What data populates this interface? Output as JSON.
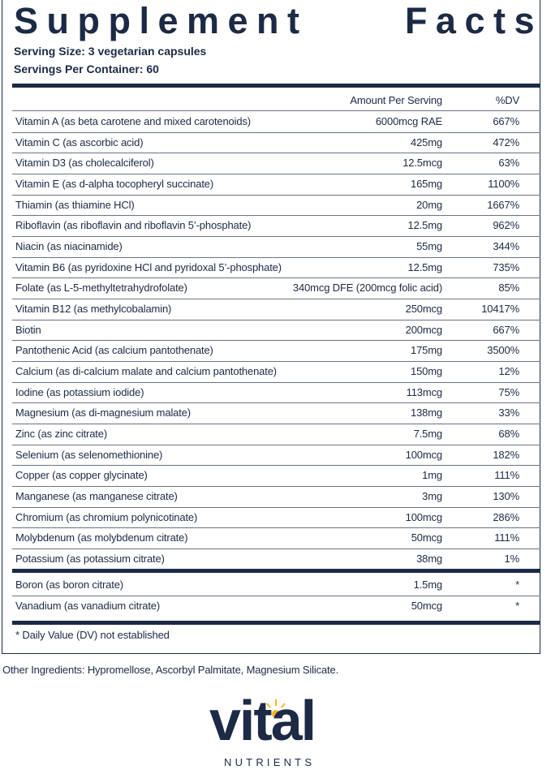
{
  "header": {
    "title": "Supplement Facts",
    "serving_size": "Serving Size: 3 vegetarian capsules",
    "servings_per_container": "Servings Per Container: 60"
  },
  "table": {
    "columns": [
      "Amount Per Serving",
      "%DV"
    ],
    "rows": [
      [
        "Vitamin A (as beta carotene and mixed carotenoids)",
        "6000mcg RAE",
        "667%"
      ],
      [
        "Vitamin C (as ascorbic acid)",
        "425mg",
        "472%"
      ],
      [
        "Vitamin D3 (as cholecalciferol)",
        "12.5mcg",
        "63%"
      ],
      [
        "Vitamin E (as d-alpha tocopheryl succinate)",
        "165mg",
        "1100%"
      ],
      [
        "Thiamin (as thiamine HCl)",
        "20mg",
        "1667%"
      ],
      [
        "Riboflavin (as riboflavin and riboflavin 5’-phosphate)",
        "12.5mg",
        "962%"
      ],
      [
        "Niacin (as niacinamide)",
        "55mg",
        "344%"
      ],
      [
        "Vitamin B6 (as pyridoxine HCl and pyridoxal 5’-phosphate)",
        "12.5mg",
        "735%"
      ],
      [
        "Folate (as L-5-methyltetrahydrofolate)",
        "340mcg DFE (200mcg folic acid)",
        "85%"
      ],
      [
        "Vitamin B12 (as methylcobalamin)",
        "250mcg",
        "10417%"
      ],
      [
        "Biotin",
        "200mcg",
        "667%"
      ],
      [
        "Pantothenic Acid (as calcium pantothenate)",
        "175mg",
        "3500%"
      ],
      [
        "Calcium (as di-calcium malate and calcium pantothenate)",
        "150mg",
        "12%"
      ],
      [
        "Iodine (as potassium iodide)",
        "113mcg",
        "75%"
      ],
      [
        "Magnesium (as di-magnesium malate)",
        "138mg",
        "33%"
      ],
      [
        "Zinc (as zinc citrate)",
        "7.5mg",
        "68%"
      ],
      [
        "Selenium (as selenomethionine)",
        "100mcg",
        "182%"
      ],
      [
        "Copper (as copper glycinate)",
        "1mg",
        "111%"
      ],
      [
        "Manganese (as manganese citrate)",
        "3mg",
        "130%"
      ],
      [
        "Chromium (as chromium polynicotinate)",
        "100mcg",
        "286%"
      ],
      [
        "Molybdenum (as molybdenum citrate)",
        "50mcg",
        "111%"
      ],
      [
        "Potassium (as potassium citrate)",
        "38mg",
        "1%"
      ]
    ],
    "extra_rows": [
      [
        "Boron (as boron citrate)",
        "1.5mg",
        "*"
      ],
      [
        "Vanadium (as vanadium citrate)",
        "50mcg",
        "*"
      ]
    ],
    "footnote": "* Daily Value (DV) not established"
  },
  "other_ingredients": "Other Ingredients: Hypromellose, Ascorbyl Palmitate, Magnesium Silicate.",
  "logo": {
    "brand": "vital",
    "tagline": "NUTRIENTS"
  }
}
